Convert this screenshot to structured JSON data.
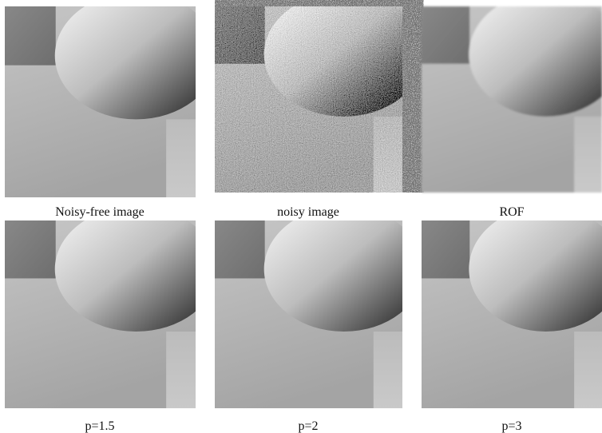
{
  "panels": [
    {
      "caption": "Noisy-free image"
    },
    {
      "caption": "noisy image"
    },
    {
      "caption": "ROF"
    },
    {
      "caption": "p=1.5"
    },
    {
      "caption": "p=2"
    },
    {
      "caption": "p=3"
    }
  ]
}
